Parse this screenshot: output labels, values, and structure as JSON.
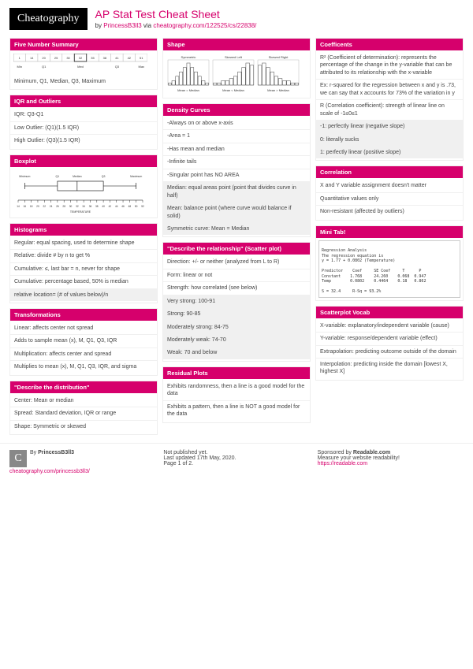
{
  "header": {
    "logo": "Cheatography",
    "title": "AP Stat Test Cheat Sheet",
    "by_prefix": "by ",
    "author": "PrincessB3ll3",
    "via": " via ",
    "url": "cheatography.com/122525/cs/22838/"
  },
  "col1": {
    "five_num": {
      "title": "Five Number Summary",
      "row1": "Minimum, Q1, Median, Q3, Maximum",
      "table_labels": [
        "Min",
        "Q1",
        "Med",
        "Q3",
        "Max"
      ],
      "table_vals": [
        "1",
        "14",
        "20",
        "25",
        "30",
        "32",
        "35",
        "38",
        "41",
        "42",
        "51"
      ]
    },
    "iqr": {
      "title": "IQR and Outliers",
      "r1": "IQR: Q3-Q1",
      "r2": "Low Outlier: (Q1)(1.5 IQR)",
      "r3": "High Outlier: (Q3)(1.5 IQR)"
    },
    "boxplot": {
      "title": "Boxplot",
      "xlabel": "TEMPERATURE",
      "q_labels": [
        "Minimum",
        "Q1",
        "Median",
        "Q3",
        "Maximum"
      ],
      "ticks": [
        14,
        16,
        18,
        20,
        22,
        24,
        26,
        28,
        30,
        32,
        34,
        36,
        38,
        40,
        42,
        44,
        46,
        48,
        50,
        52
      ]
    },
    "hist": {
      "title": "Histograms",
      "r1": "Regular: equal spacing, used to determine shape",
      "r2": "Relative: divide # by n to get %",
      "r3": "Cumulative: ≤, last bar = n, never for shape",
      "r4": "Cumulative: percentage based, 50% is median",
      "r5": "relative location= (# of values below)/n"
    },
    "trans": {
      "title": "Transformations",
      "r1": "Linear: affects center not spread",
      "r2": "Adds to sample mean (x), M, Q1, Q3, IQR",
      "r3": "Multiplication: affects center and spread",
      "r4": "Multiplies to mean (x), M, Q1, Q3, IQR, and sigma"
    },
    "dist": {
      "title": "\"Describe the distribution\"",
      "r1": "Center: Mean or median",
      "r2": "Spread: Standard deviation, IQR or range",
      "r3": "Shape: Symmetric or skewed"
    }
  },
  "col2": {
    "shape": {
      "title": "Shape",
      "t1": "Symmetric",
      "c1": "Mean = Median",
      "t2": "Skewed Left",
      "c2": "Mean < Median",
      "t3": "Skewed Right",
      "c3": "Mean > Median",
      "sym_bars": [
        1,
        2,
        4,
        6,
        8,
        10,
        8,
        6,
        4,
        2,
        1
      ],
      "left_bars": [
        1,
        1,
        2,
        2,
        3,
        4,
        6,
        8,
        10,
        9
      ],
      "right_bars": [
        9,
        10,
        8,
        6,
        4,
        3,
        2,
        2,
        1,
        1
      ]
    },
    "density": {
      "title": "Density Curves",
      "r1": "-Always on or above x-axis",
      "r2": "-Area = 1",
      "r3": "-Has mean and median",
      "r4": "-Infinite tails",
      "r5": "-Singular point has NO AREA",
      "r6": "Median: equal areas point (point that divides curve in half)",
      "r7": "Mean: balance point (where curve would balance if solid)",
      "r8": "Symmetric curve: Mean = Median"
    },
    "scatter": {
      "title": "\"Describe the relationship\" (Scatter plot)",
      "r1": "Direction: +/- or neither (analyzed from L to R)",
      "r2": "Form: linear or not",
      "r3": "Strength: how correlated (see below)",
      "r4": "Very strong: 100-91",
      "r5": "Strong: 90-85",
      "r6": "Moderately strong: 84-75",
      "r7": "Moderately weak: 74-70",
      "r8": "Weak: 70 and below"
    },
    "resid": {
      "title": "Residual Plots",
      "r1": "Exhibits randomness, then a line is a good model for the data",
      "r2": "Exhibits a pattern, then a line is NOT a good model for the data"
    }
  },
  "col3": {
    "coef": {
      "title": "Coefficents",
      "r1": "R² (Coefficient of determination): represents the percentage of the change in the y-variable that can be attributed to its relationship with the x-variable",
      "r2": "Ex: r-squared for the regression between x and y is .73, we can say that x accounts for 73% of the variation in y",
      "r3": "R (Correlation coefficient): strength of linear line on scale of -1≤0≤1",
      "r4": "-1: perfectly linear (negative slope)",
      "r5": "0: literally sucks",
      "r6": "1: perfectly linear (positive slope)"
    },
    "corr": {
      "title": "Correlation",
      "r1": "X and Y variable assignment doesn't matter",
      "r2": "Quantitative values only",
      "r3": "Non-resistant (affected by outliers)"
    },
    "minitab": {
      "title": "Mini Tab!",
      "line1": "Regression Analysis",
      "line2": "The regression equation is",
      "line3": "y = 1.77 + 0.0802 (Temperature)",
      "line4": "Predictor    Coef     SE Coef     T      P",
      "line5": "Constant    1.768     24.260    0.068  0.947",
      "line6": "Temp        0.0802    0.4464    0.18   0.862",
      "line7": "S = 32.4     R-Sq = 93.2%"
    },
    "svocab": {
      "title": "Scatterplot Vocab",
      "r1": "X-variable: explanatory/independent variable (cause)",
      "r2": "Y-variable: response/dependent variable (effect)",
      "r3": "Extrapolation: predicting outcome outside of the domain",
      "r4": "Interpolation: predicting inside the domain [lowest X, highest X]"
    }
  },
  "footer": {
    "by_label": "By ",
    "author": "PrincessB3ll3",
    "profile": "cheatography.com/princessb3ll3/",
    "pub1": "Not published yet.",
    "pub2": "Last updated 17th May, 2020.",
    "pub3": "Page 1 of 2.",
    "spon1": "Sponsored by ",
    "spon1b": "Readable.com",
    "spon2": "Measure your website readability!",
    "spon3": "https://readable.com"
  },
  "colors": {
    "accent": "#d6006c",
    "bar": "#999999"
  }
}
